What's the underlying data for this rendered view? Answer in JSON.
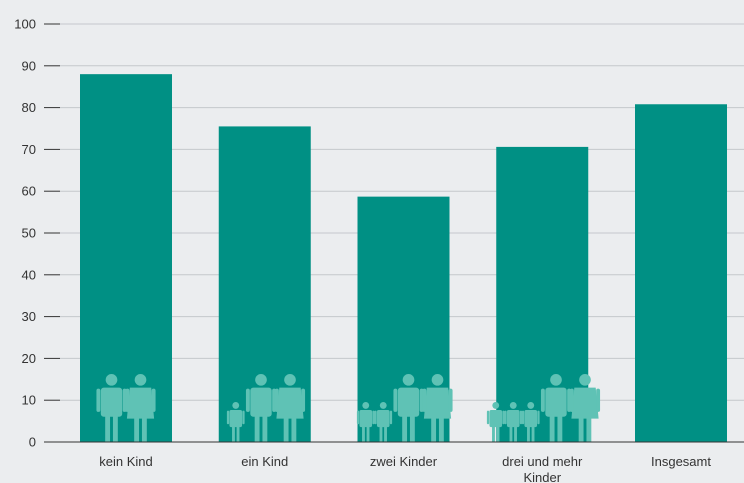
{
  "chart_data": {
    "type": "bar",
    "title": "",
    "xlabel": "",
    "ylabel": "",
    "categories": [
      "kein Kind",
      "ein Kind",
      "zwei Kinder",
      "drei und mehr Kinder",
      "Insgesamt"
    ],
    "category_label_lines": [
      [
        "kein Kind"
      ],
      [
        "ein Kind"
      ],
      [
        "zwei Kinder"
      ],
      [
        "drei und mehr",
        "Kinder"
      ],
      [
        "Insgesamt"
      ]
    ],
    "values": [
      88,
      75.5,
      58.7,
      70.6,
      80.8
    ],
    "children_icons": [
      0,
      1,
      2,
      3,
      0
    ],
    "adult_icons": [
      2,
      2,
      2,
      2,
      0
    ],
    "yticks": [
      0,
      10,
      20,
      30,
      40,
      50,
      60,
      70,
      80,
      90,
      100
    ],
    "ylim": [
      0,
      100
    ],
    "grid": true,
    "legend": "none",
    "colors": {
      "bar": "#009084",
      "icon": "#5fc2b5",
      "background": "#ebedef",
      "grid": "#c4c8cc",
      "text": "#333333"
    }
  }
}
